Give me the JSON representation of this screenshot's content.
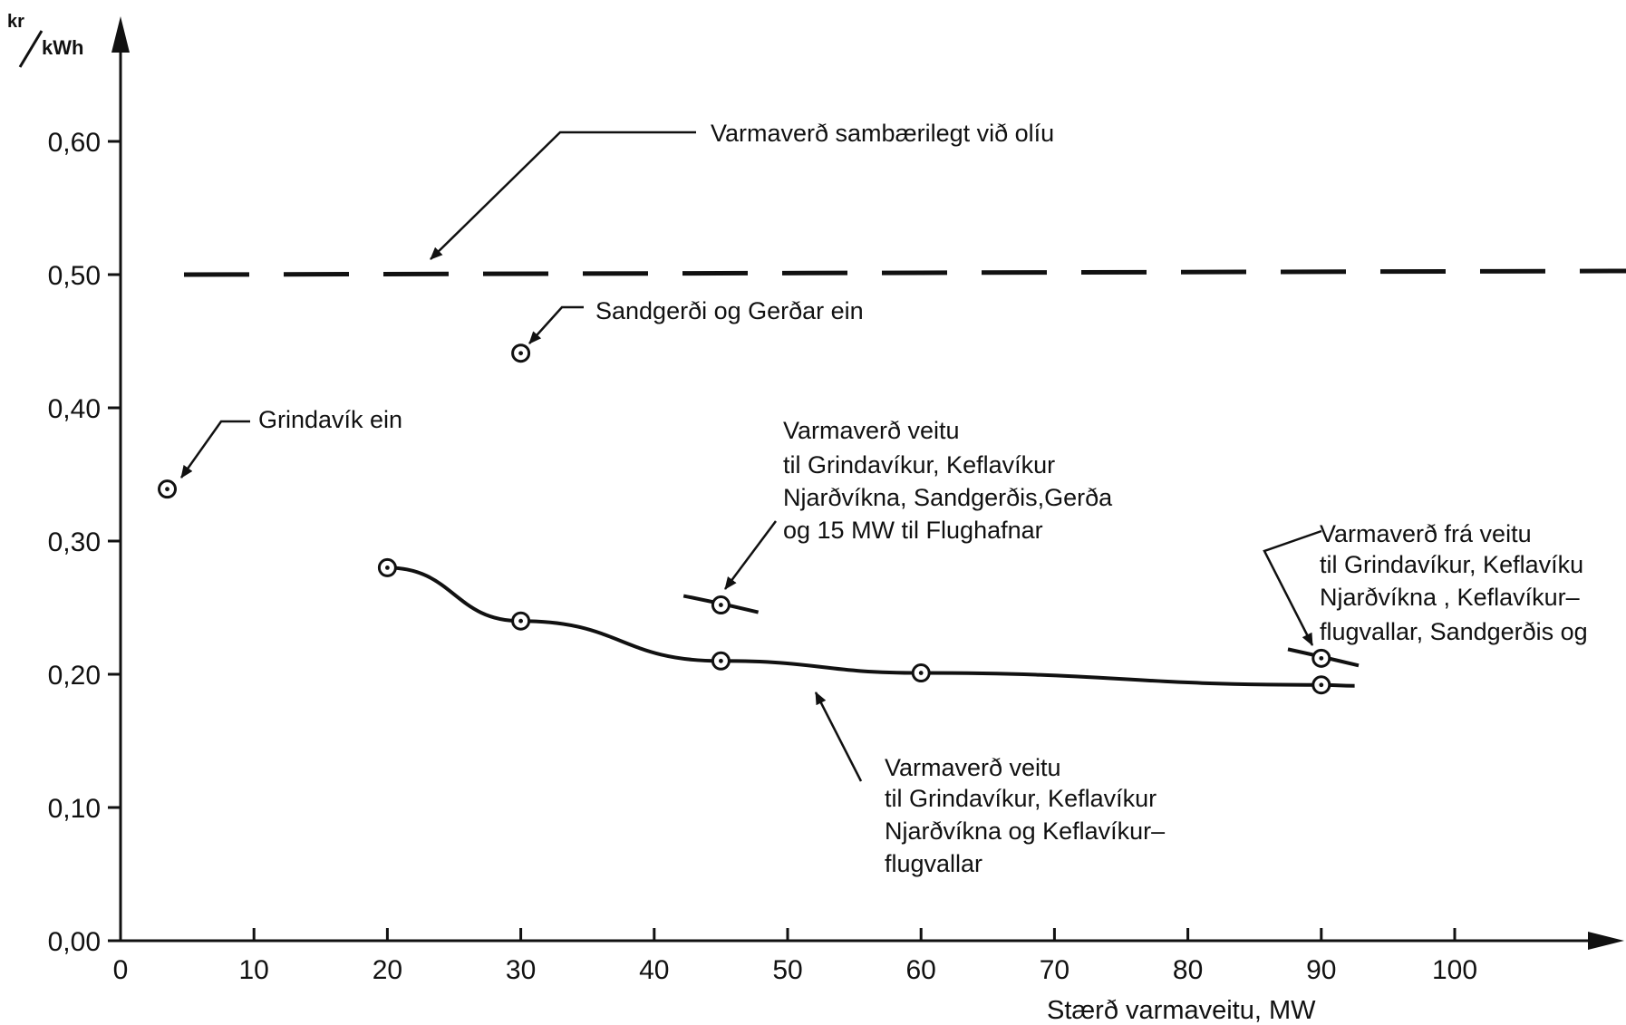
{
  "chart_data": {
    "type": "line",
    "title": "",
    "xlabel": "Stærð varmaveitu, MW",
    "ylabel_num": "kr",
    "ylabel_den": "kWh",
    "xlim": [
      0,
      112
    ],
    "ylim": [
      0,
      0.69
    ],
    "x_ticks": [
      {
        "value": 0,
        "label": "0"
      },
      {
        "value": 10,
        "label": "10"
      },
      {
        "value": 20,
        "label": "20"
      },
      {
        "value": 30,
        "label": "30"
      },
      {
        "value": 40,
        "label": "40"
      },
      {
        "value": 50,
        "label": "50"
      },
      {
        "value": 60,
        "label": "60"
      },
      {
        "value": 70,
        "label": "70"
      },
      {
        "value": 80,
        "label": "80"
      },
      {
        "value": 90,
        "label": "90"
      },
      {
        "value": 100,
        "label": "100"
      }
    ],
    "y_ticks": [
      {
        "value": 0.0,
        "label": "0,00"
      },
      {
        "value": 0.1,
        "label": "0,10"
      },
      {
        "value": 0.2,
        "label": "0,20"
      },
      {
        "value": 0.3,
        "label": "0,30"
      },
      {
        "value": 0.4,
        "label": "0,40"
      },
      {
        "value": 0.5,
        "label": "0,50"
      },
      {
        "value": 0.6,
        "label": "0,60"
      }
    ],
    "series": [
      {
        "points": [
          [
            20,
            0.28
          ],
          [
            30,
            0.24
          ],
          [
            45,
            0.21
          ],
          [
            60,
            0.201
          ],
          [
            90,
            0.192
          ]
        ],
        "extend_to": 92.5,
        "marker": "circle-dot"
      },
      {
        "points": [
          [
            45,
            0.252
          ]
        ],
        "stub": [
          42.2,
          47.8
        ],
        "marker": "circle-dot"
      },
      {
        "points": [
          [
            90,
            0.212
          ]
        ],
        "stub": [
          87.5,
          92.8
        ],
        "marker": "circle-dot"
      },
      {
        "points": [
          [
            30,
            0.441
          ]
        ],
        "marker": "circle-dot"
      },
      {
        "points": [
          [
            3.5,
            0.339
          ]
        ],
        "marker": "circle-dot"
      }
    ],
    "reference_line": {
      "y": 0.5,
      "style": "dashed"
    },
    "annotations": [
      {
        "lines": [
          "Varmaverð sambærilegt við olíu"
        ]
      },
      {
        "lines": [
          "Sandgerði og Gerðar ein"
        ]
      },
      {
        "lines": [
          "Grindavík ein"
        ]
      },
      {
        "lines": [
          "Varmaverð veitu",
          "til Grindavíkur, Keflavíkur",
          "Njarðvíkna, Sandgerðis,Gerða",
          "og 15 MW til Flughafnar"
        ]
      },
      {
        "lines": [
          "Varmaverð frá veitu",
          "til Grindavíkur, Keflavíku",
          "Njarðvíkna , Keflavíkur–",
          "flugvallar, Sandgerðis og"
        ]
      },
      {
        "lines": [
          "Varmaverð veitu",
          "til Grindavíkur, Keflavíkur",
          "Njarðvíkna og Keflavíkur–",
          "flugvallar"
        ]
      }
    ]
  }
}
